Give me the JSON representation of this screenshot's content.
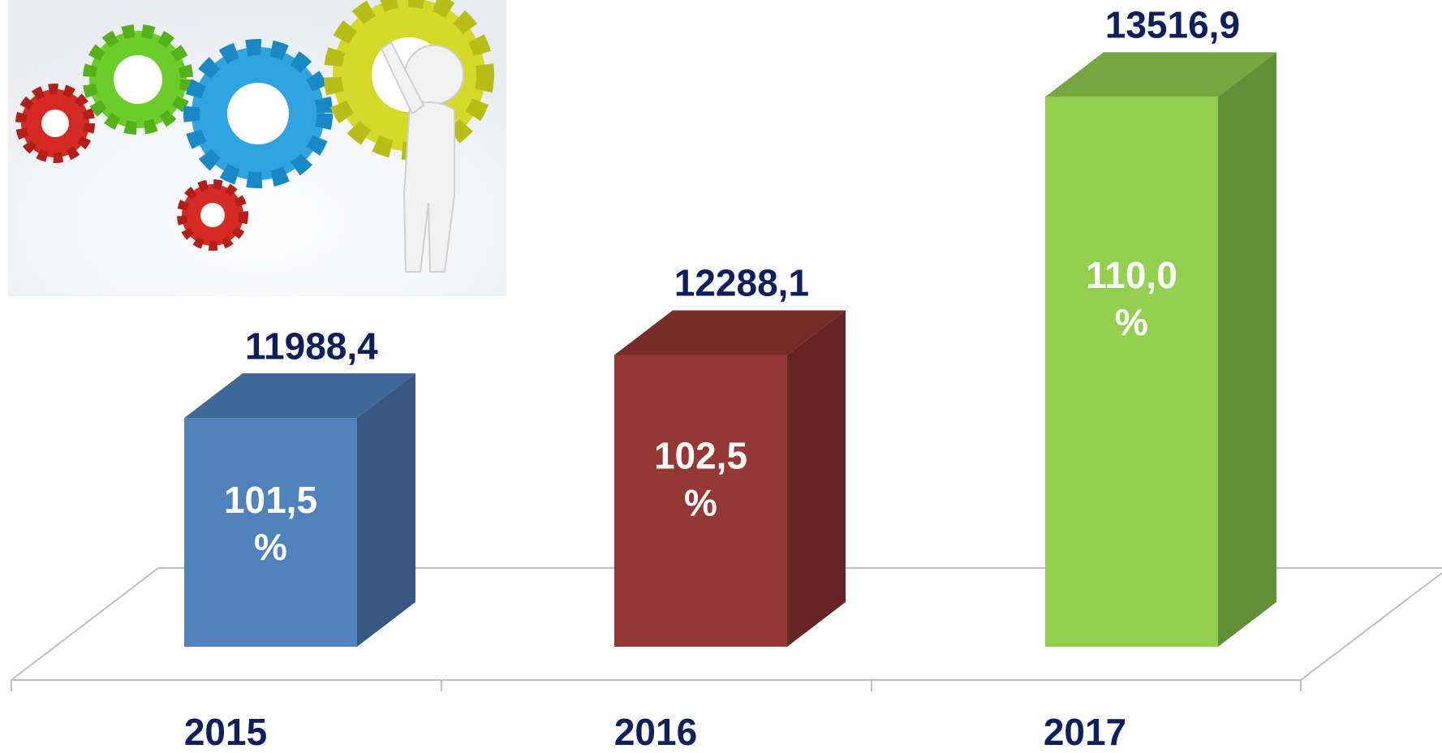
{
  "chart_data": {
    "type": "bar3d",
    "categories": [
      "2015",
      "2016",
      "2017"
    ],
    "values": [
      11988.4,
      12288.1,
      13516.9
    ],
    "value_labels": [
      "11988,4",
      "12288,1",
      "13516,9"
    ],
    "growth_labels": [
      [
        "101,5",
        "%"
      ],
      [
        "102,5",
        "%"
      ],
      [
        "110,0",
        "%"
      ]
    ],
    "colors": [
      "#4f81bd",
      "#953735",
      "#92d050"
    ],
    "ylim": [
      10900,
      13800
    ]
  }
}
